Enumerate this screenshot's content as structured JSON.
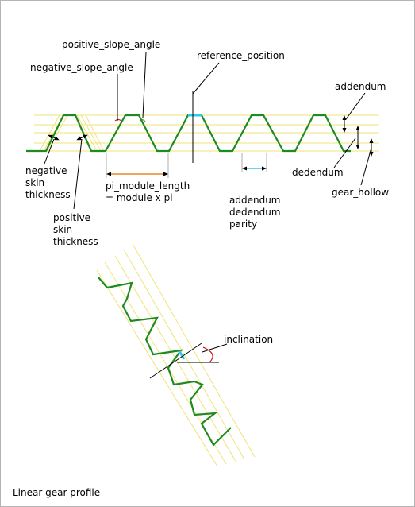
{
  "labels": {
    "positive_slope_angle": "positive_slope_angle",
    "negative_slope_angle": "negative_slope_angle",
    "reference_position": "reference_position",
    "addendum": "addendum",
    "negative_skin_thickness": [
      "negative",
      "skin",
      "thickness"
    ],
    "positive_skin_thickness": [
      "positive",
      "skin",
      "thickness"
    ],
    "pi_module_length": [
      "pi_module_length",
      "= module x pi"
    ],
    "addendum_dedendum_parity": [
      "addendum",
      "dedendum",
      "parity"
    ],
    "dedendum": "dedendum",
    "gear_hollow": "gear_hollow",
    "inclination": "inclination"
  },
  "caption": "Linear gear profile",
  "colors": {
    "gear": "#1f8a1f",
    "guide": "#f0e37a",
    "reference_mark": "#2ec8e8",
    "pi_module_arrow": "#e8852a",
    "angle_arc": "#cc0000",
    "parity_arrow": "#2ec8e8",
    "border": "#b4b4b4"
  }
}
